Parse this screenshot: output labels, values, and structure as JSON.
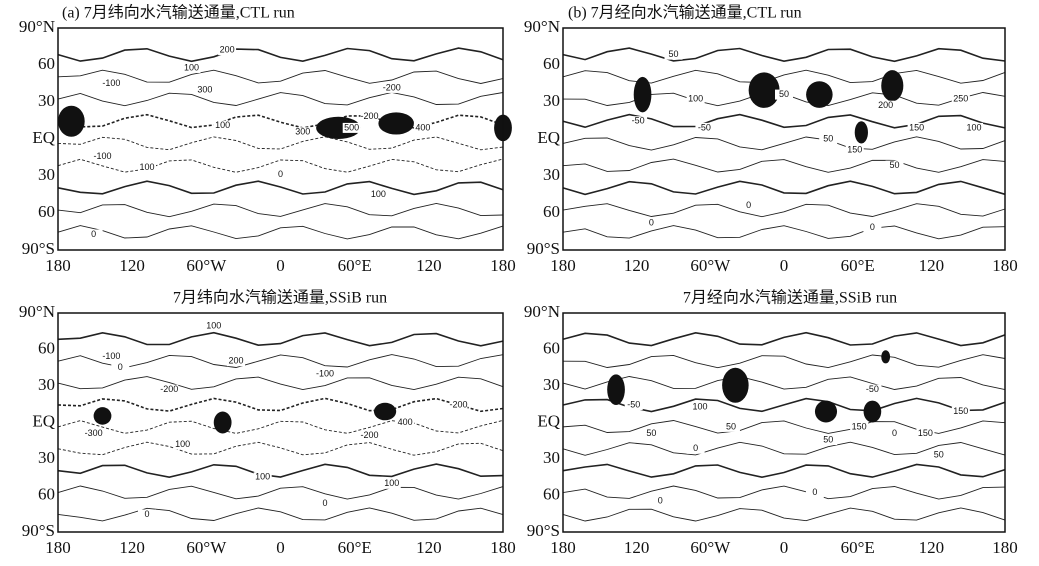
{
  "y_axis_labels": [
    "90°N",
    "60",
    "30",
    "EQ",
    "30",
    "60",
    "90°S"
  ],
  "x_axis_labels": [
    "180",
    "120",
    "60°W",
    "0",
    "60°E",
    "120",
    "180"
  ],
  "panels": [
    {
      "title": "(a) 7月纬向水汽输送通量,CTL run",
      "contour_labels": [
        "200",
        "100",
        "-100",
        "300",
        "-200",
        "100",
        "-200",
        "500",
        "400",
        "300",
        "-100",
        "100",
        "100",
        "0",
        "0"
      ]
    },
    {
      "title": "(b) 7月经向水汽输送通量,CTL run",
      "contour_labels": [
        "50",
        "-50",
        "100",
        "50",
        "-50",
        "200",
        "250",
        "150",
        "150",
        "50",
        "100",
        "50",
        "0",
        "0",
        "0"
      ]
    },
    {
      "title": "7月纬向水汽输送通量,SSiB run",
      "contour_labels": [
        "-100",
        "100",
        "200",
        "-200",
        "-300",
        "-100",
        "400",
        "-200",
        "-200",
        "100",
        "100",
        "100",
        "0",
        "0",
        "0"
      ]
    },
    {
      "title": "7月经向水汽输送通量,SSiB run",
      "contour_labels": [
        "-50",
        "100",
        "50",
        "-50",
        "150",
        "150",
        "150",
        "50",
        "50",
        "50",
        "0",
        "0",
        "0",
        "0"
      ]
    }
  ]
}
